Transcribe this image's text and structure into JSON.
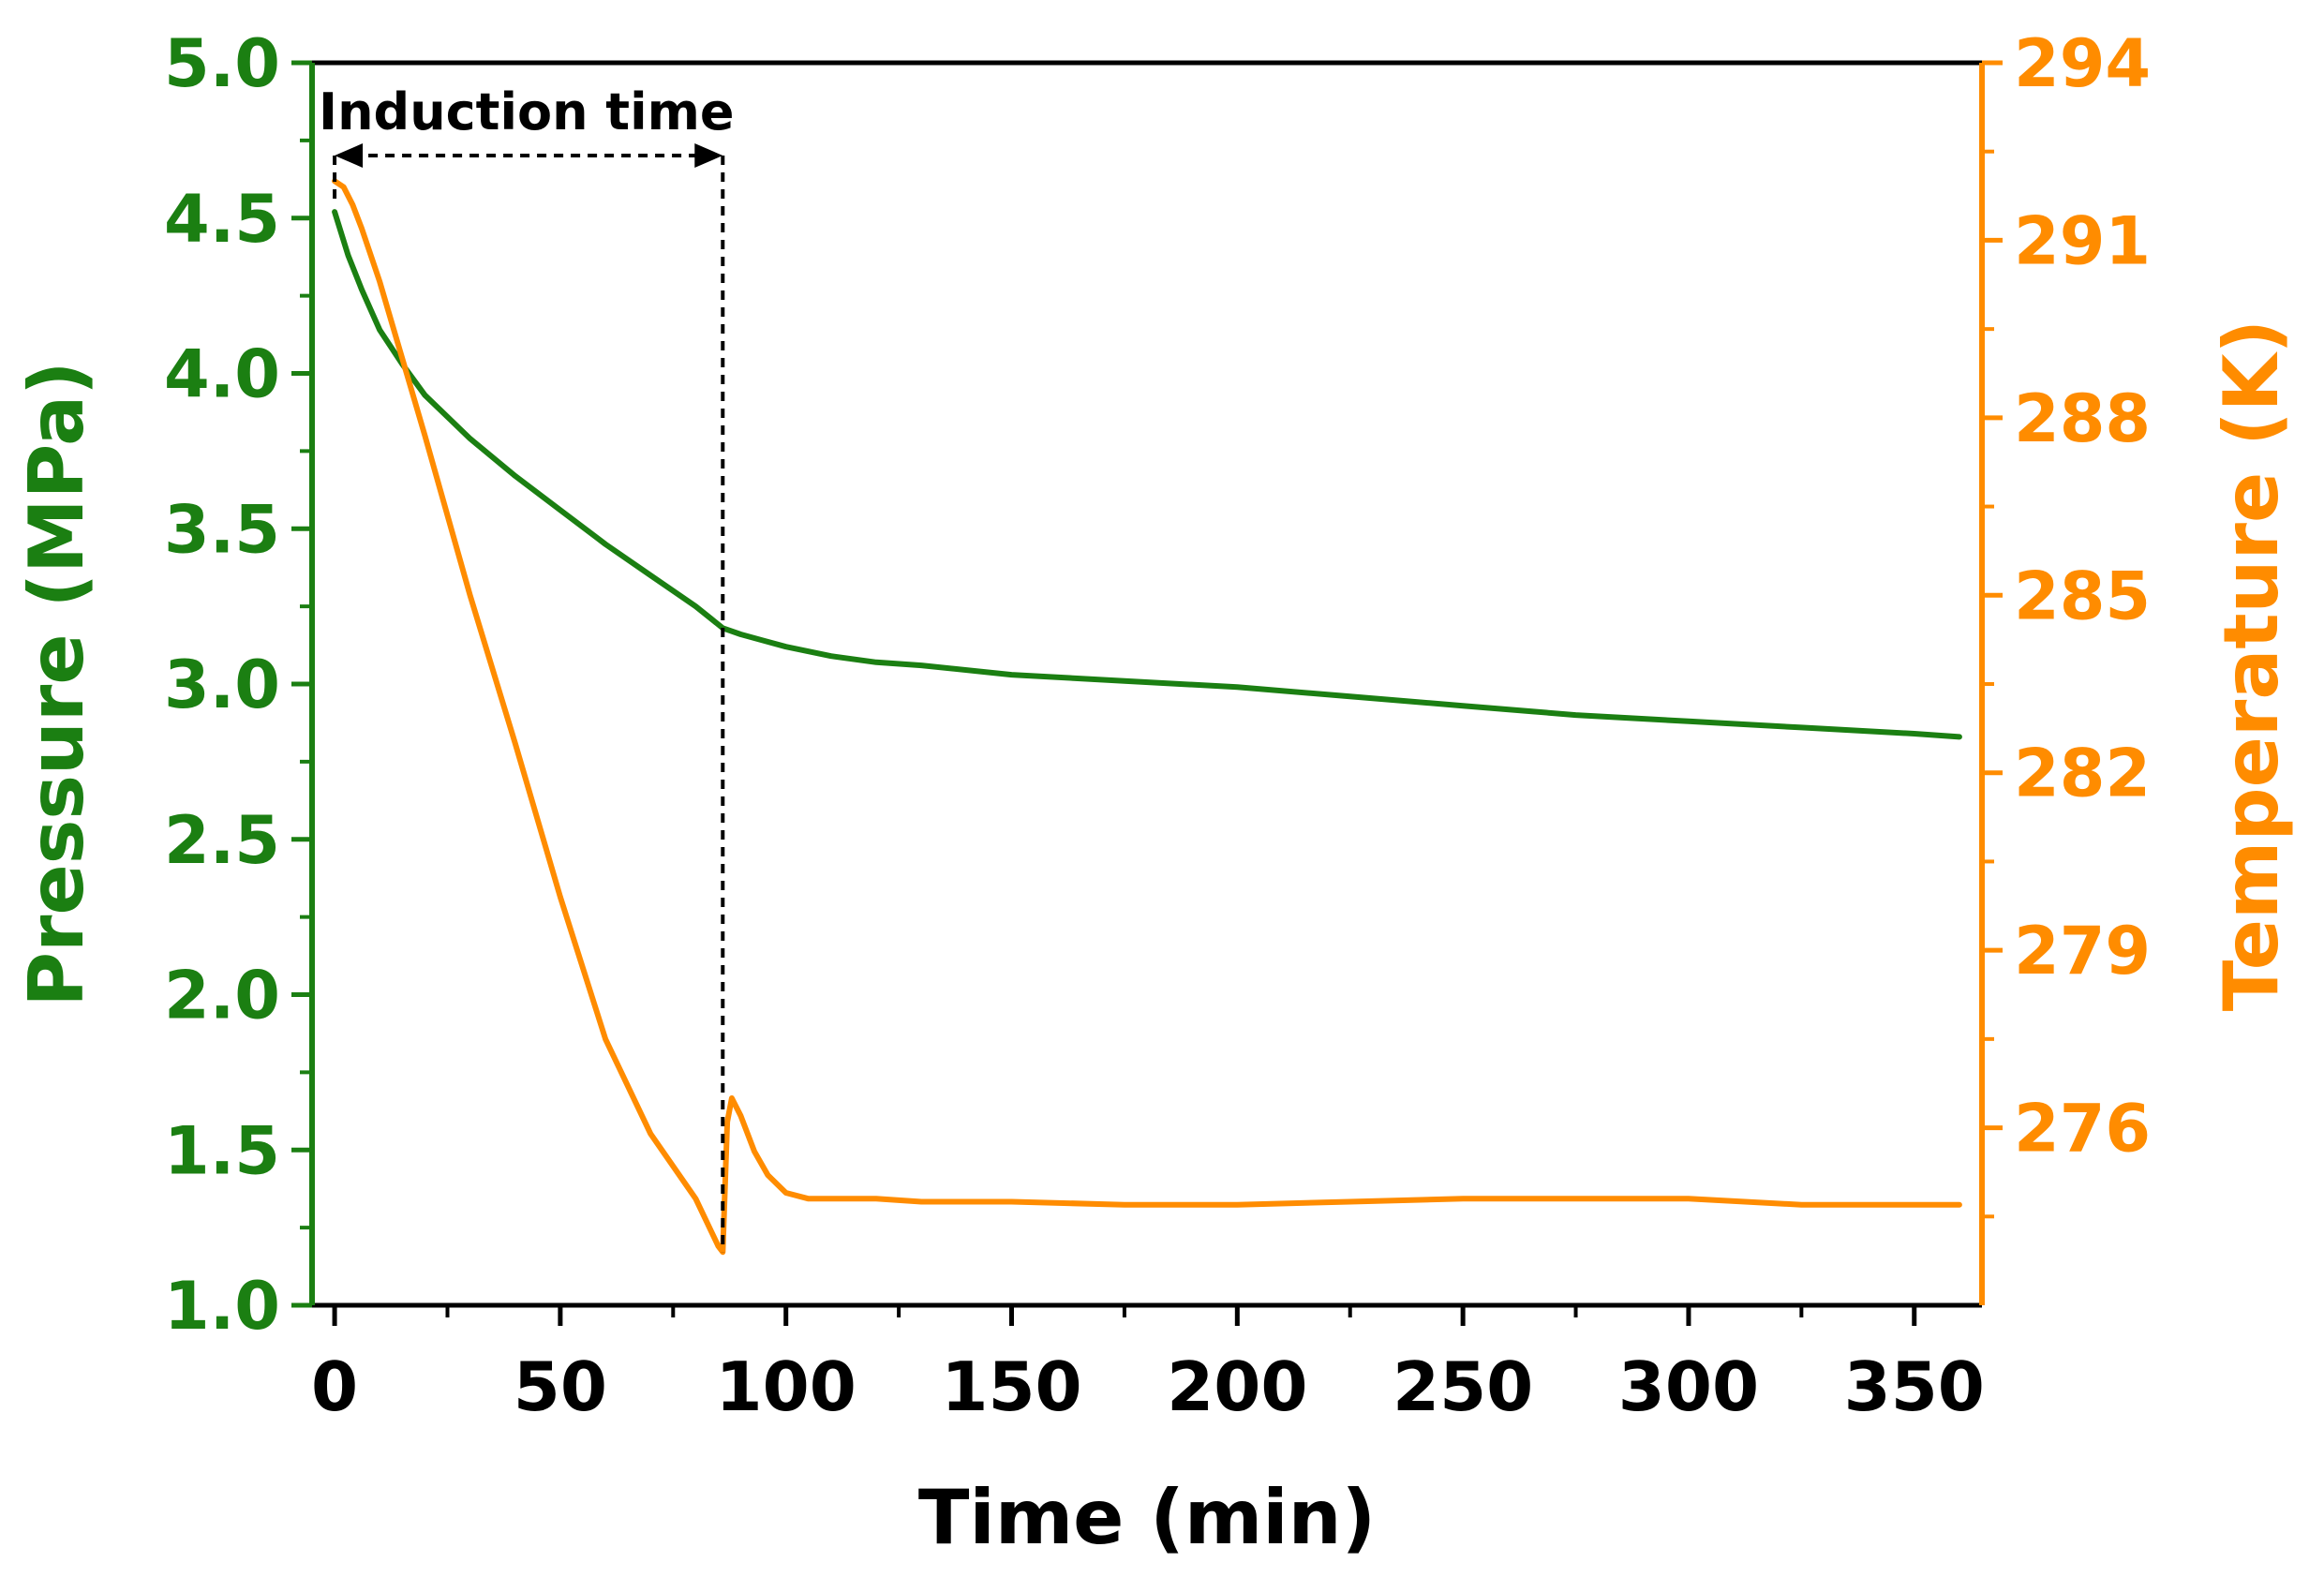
{
  "chart_data": {
    "type": "line",
    "title": "",
    "xlabel": "Time (min)",
    "ylabel": "Pressure (MPa)",
    "y2label": "Temperature (K)",
    "xlim": [
      -5,
      365
    ],
    "ylim": [
      1.0,
      5.0
    ],
    "y2lim": [
      273,
      294
    ],
    "xticks": [
      "0",
      "50",
      "100",
      "150",
      "200",
      "250",
      "300",
      "350"
    ],
    "yticks": [
      "1.0",
      "1.5",
      "2.0",
      "2.5",
      "3.0",
      "3.5",
      "4.0",
      "4.5",
      "5.0"
    ],
    "y2ticks": [
      "276",
      "279",
      "282",
      "285",
      "288",
      "291",
      "294"
    ],
    "colors": {
      "pressure": "#1b7f12",
      "temperature": "#ff8c00",
      "annotation": "#000000",
      "frame": "#000000"
    },
    "annotation": {
      "label": "Induction time",
      "x_start": 0,
      "x_end": 86
    },
    "series": [
      {
        "name": "Pressure",
        "axis": "left",
        "color": "#1b7f12",
        "x": [
          0,
          3,
          6,
          10,
          15,
          20,
          25,
          30,
          40,
          50,
          60,
          70,
          80,
          86,
          90,
          95,
          100,
          110,
          120,
          130,
          150,
          175,
          200,
          225,
          250,
          275,
          300,
          325,
          350,
          360
        ],
        "values": [
          4.52,
          4.38,
          4.27,
          4.14,
          4.03,
          3.93,
          3.86,
          3.79,
          3.67,
          3.56,
          3.45,
          3.35,
          3.25,
          3.18,
          3.16,
          3.14,
          3.12,
          3.09,
          3.07,
          3.06,
          3.03,
          3.01,
          2.99,
          2.96,
          2.93,
          2.9,
          2.88,
          2.86,
          2.84,
          2.83
        ]
      },
      {
        "name": "Temperature",
        "axis": "right",
        "color": "#ff8c00",
        "x": [
          0,
          2,
          4,
          6,
          10,
          20,
          30,
          40,
          50,
          60,
          70,
          80,
          85,
          86,
          87,
          88,
          90,
          93,
          96,
          100,
          105,
          110,
          115,
          120,
          130,
          150,
          175,
          200,
          225,
          250,
          275,
          300,
          325,
          350,
          360
        ],
        "values": [
          292.0,
          291.9,
          291.6,
          291.2,
          290.3,
          287.7,
          285.0,
          282.5,
          279.9,
          277.5,
          275.9,
          274.8,
          274.0,
          273.9,
          276.1,
          276.5,
          276.2,
          275.6,
          275.2,
          274.9,
          274.8,
          274.8,
          274.8,
          274.8,
          274.75,
          274.75,
          274.7,
          274.7,
          274.75,
          274.8,
          274.8,
          274.8,
          274.7,
          274.7,
          274.7
        ]
      }
    ]
  }
}
